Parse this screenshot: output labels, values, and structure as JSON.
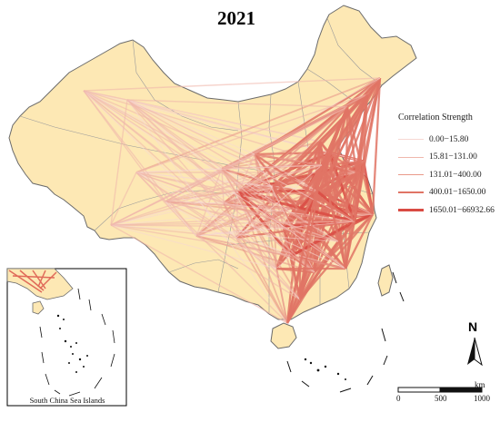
{
  "map": {
    "title": "2021",
    "legend": {
      "title": "Correlation Strength",
      "items": [
        {
          "label": "0.00−15.80",
          "color": "#f6d7d2",
          "width": 1
        },
        {
          "label": "15.81−131.00",
          "color": "#f0b7ac",
          "width": 1.4
        },
        {
          "label": "131.01−400.00",
          "color": "#e9998a",
          "width": 1.8
        },
        {
          "label": "400.01−1650.00",
          "color": "#e07465",
          "width": 2.3
        },
        {
          "label": "1650.01−66932.66",
          "color": "#d94b43",
          "width": 3
        }
      ]
    },
    "north_arrow": "N",
    "scale_bar": {
      "ticks": [
        "0",
        "500",
        "1000"
      ],
      "unit": "km"
    },
    "inset_caption": "South China Sea Islands",
    "colors": {
      "land": "#fde8b4",
      "border": "#6b6b6b",
      "province_border": "#9a9a9a"
    }
  }
}
